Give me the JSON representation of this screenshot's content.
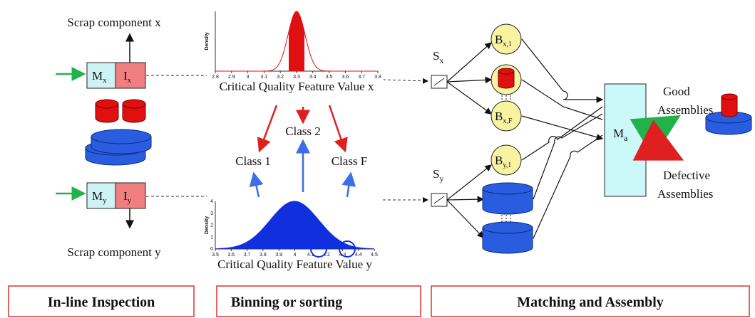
{
  "inspection": {
    "scrap_x": "Scrap component x",
    "scrap_y": "Scrap component y",
    "machine_x": {
      "m": "M",
      "m_sub": "x",
      "i": "I",
      "i_sub": "x"
    },
    "machine_y": {
      "m": "M",
      "m_sub": "y",
      "i": "I",
      "i_sub": "y"
    }
  },
  "binning": {
    "plot_x": {
      "ylabel": "Density",
      "xlabel": "Critical Quality Feature Value x",
      "xticks": [
        "2.8",
        "2.9",
        "3",
        "3.1",
        "3.2",
        "3.3",
        "3.4",
        "3.5",
        "3.6",
        "3.7",
        "3.8"
      ]
    },
    "plot_y": {
      "ylabel": "Density",
      "xlabel": "Critical Quality Feature Value y",
      "xticks": [
        "3.5",
        "3.6",
        "3.7",
        "3.8",
        "3.9",
        "4",
        "4.1",
        "4.2",
        "4.3",
        "4.4",
        "4.5"
      ],
      "yticks": [
        "0",
        "1",
        "2",
        "3",
        "4"
      ]
    },
    "classes": [
      "Class 1",
      "Class 2",
      "Class F"
    ]
  },
  "matching": {
    "sensor_x": {
      "main": "S",
      "sub": "x"
    },
    "sensor_y": {
      "main": "S",
      "sub": "y"
    },
    "bins": [
      {
        "main": "B",
        "sub": "x,1"
      },
      {
        "main": "B",
        "sub": "x,F"
      },
      {
        "main": "B",
        "sub": "y,1"
      }
    ],
    "assembly": {
      "main": "M",
      "sub": "a"
    },
    "good": [
      "Good",
      "Assemblies"
    ],
    "defective": [
      "Defective",
      "Assemblies"
    ]
  },
  "sections": [
    "In-line Inspection",
    "Binning or sorting",
    "Matching and Assembly"
  ]
}
